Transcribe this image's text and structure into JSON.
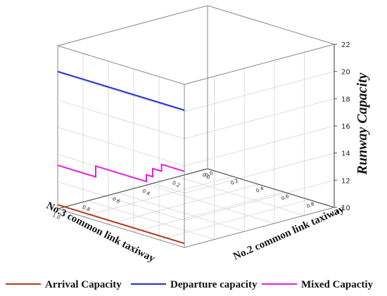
{
  "chart_data": {
    "type": "line",
    "projection": "3d",
    "zlabel": "Runway Capacity",
    "xlabel": "No.2 common link taxiway",
    "ylabel": "No.3 common link taxiway",
    "x_ticks": [
      "0.0",
      "0.2",
      "0.4",
      "0.6",
      "0.8",
      "1.0"
    ],
    "y_ticks": [
      "1.0",
      "0.8",
      "0.6",
      "0.4",
      "0.2",
      "0.0"
    ],
    "zlim": [
      10,
      22
    ],
    "z_ticks": [
      "10",
      "12",
      "14",
      "16",
      "18",
      "20",
      "22"
    ],
    "grid": true,
    "legend_position": "bottom",
    "series": [
      {
        "name": "Arrival Capacity",
        "color": "#b03a1e",
        "x": [
          0.0,
          1.0
        ],
        "y": [
          1.0,
          1.0
        ],
        "z": [
          10.3,
          10.3
        ]
      },
      {
        "name": "Departure capacity",
        "color": "#1f2fd6",
        "x": [
          0.0,
          1.0
        ],
        "y": [
          1.0,
          1.0
        ],
        "z": [
          20.1,
          20.1
        ]
      },
      {
        "name": "Mixed Capactiy",
        "color": "#e51de3",
        "x": [
          0.0,
          0.3,
          0.3,
          0.4,
          0.4,
          0.7,
          0.7,
          0.75,
          0.75,
          0.82,
          0.82,
          1.0
        ],
        "y": [
          1.0,
          1.0,
          1.0,
          1.0,
          1.0,
          1.0,
          1.0,
          1.0,
          1.0,
          1.0,
          1.0,
          1.0
        ],
        "z": [
          13.2,
          13.2,
          14.0,
          14.0,
          14.0,
          14.0,
          14.5,
          14.5,
          15.1,
          15.1,
          15.6,
          15.6
        ]
      }
    ]
  }
}
